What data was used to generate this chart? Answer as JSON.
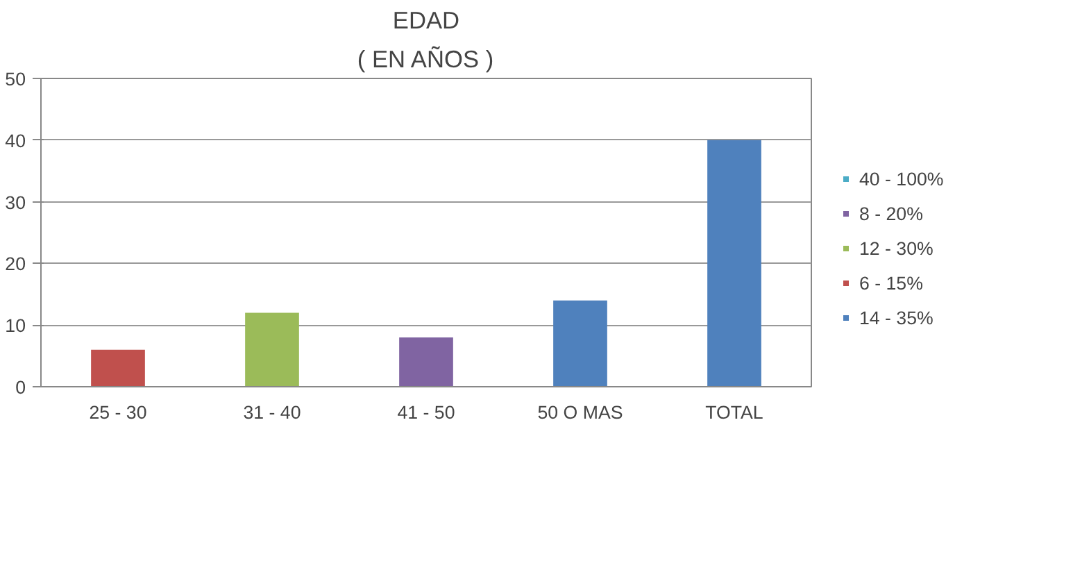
{
  "chart_data": {
    "type": "bar",
    "title": "EDAD",
    "subtitle": "( EN AÑOS )",
    "categories": [
      "25 - 30",
      "31 - 40",
      "41 - 50",
      "50 O MAS",
      "TOTAL"
    ],
    "series": [
      {
        "name": "40 - 100%",
        "color": "#4bacc6",
        "values": [
          null,
          null,
          null,
          null,
          null
        ]
      },
      {
        "name": "8 - 20%",
        "color": "#8064a2",
        "values": [
          null,
          null,
          8,
          null,
          null
        ]
      },
      {
        "name": "12 - 30%",
        "color": "#9bbb59",
        "values": [
          null,
          12,
          null,
          null,
          null
        ]
      },
      {
        "name": "6 - 15%",
        "color": "#c0504d",
        "values": [
          6,
          null,
          null,
          null,
          null
        ]
      },
      {
        "name": "14 - 35%",
        "color": "#4f81bd",
        "values": [
          null,
          null,
          null,
          14,
          40
        ]
      }
    ],
    "stacked": true,
    "ylim": [
      0,
      50
    ],
    "yticks": [
      0,
      10,
      20,
      30,
      40,
      50
    ],
    "grid": "y",
    "legend": "right"
  }
}
